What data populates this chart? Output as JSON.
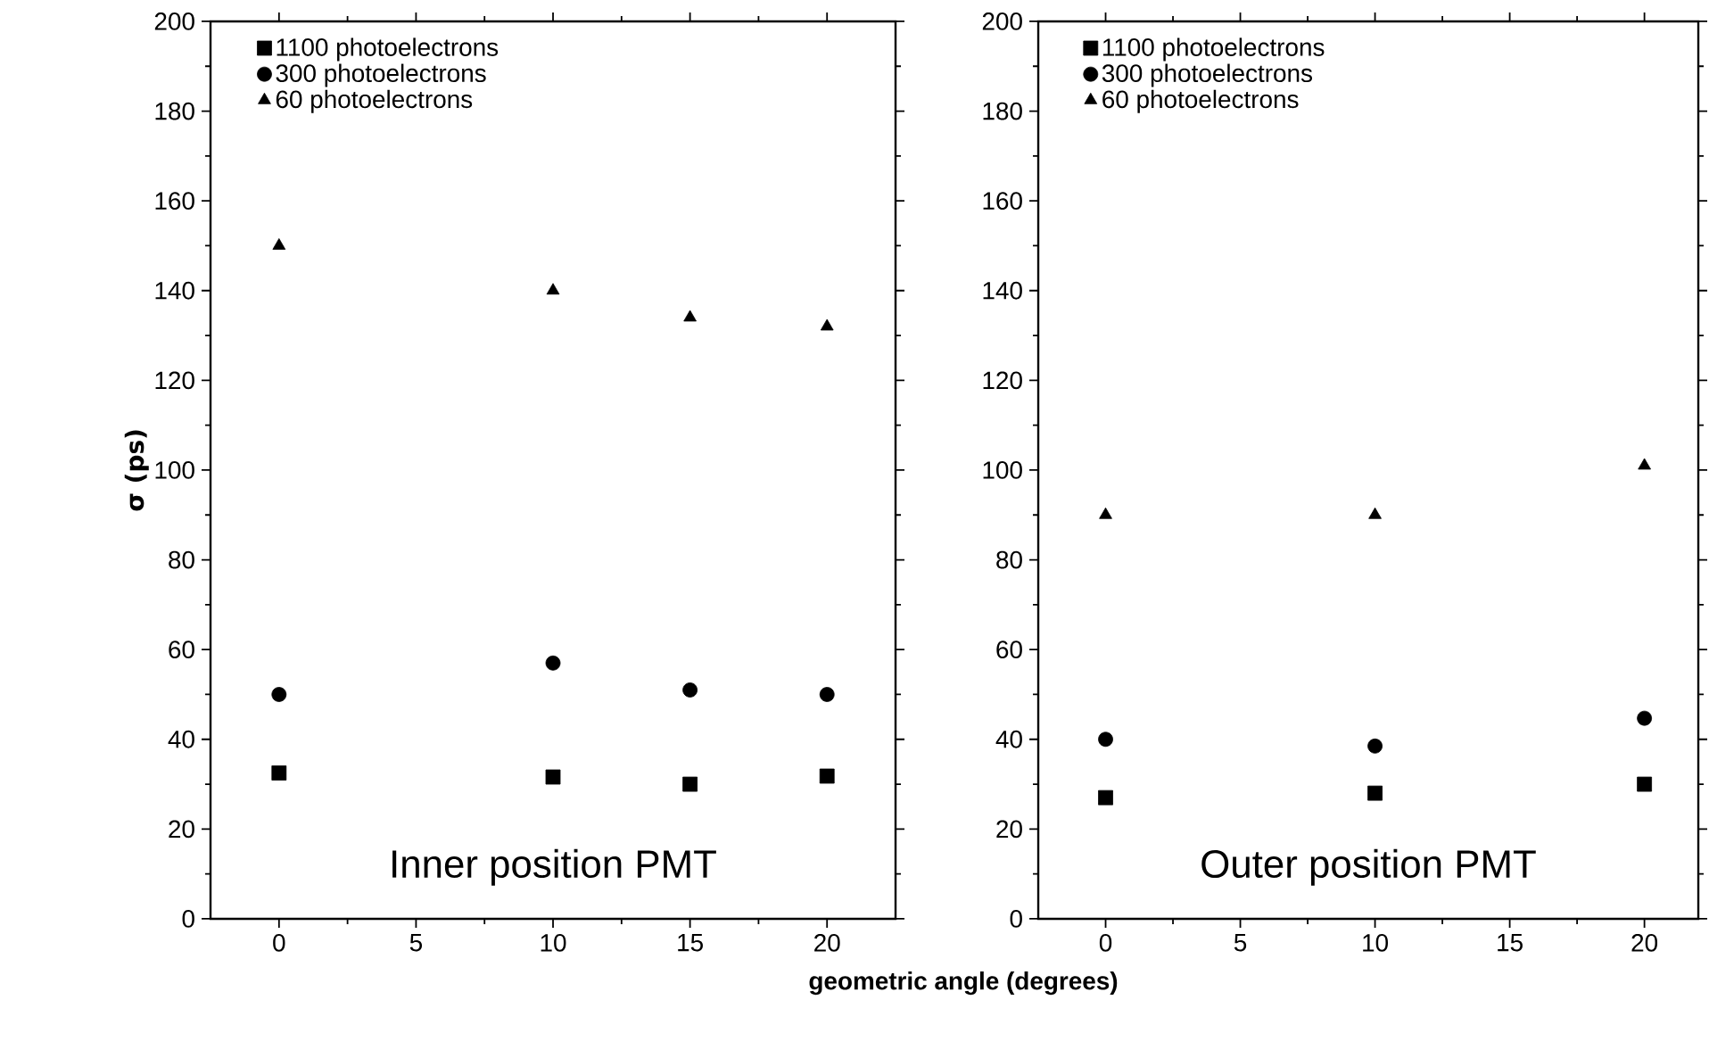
{
  "chart_data": [
    {
      "type": "scatter",
      "ylabel": "σ (ps)",
      "xlabel": "geometric angle (degrees)",
      "annotations": [
        "Inner position PMT"
      ],
      "x": [
        0,
        10,
        15,
        20
      ],
      "xlim": [
        -2.5,
        22.5
      ],
      "xticks": [
        0,
        5,
        10,
        15,
        20
      ],
      "ylim": [
        0,
        200
      ],
      "yticks": [
        0,
        20,
        40,
        60,
        80,
        100,
        120,
        140,
        160,
        180,
        200
      ],
      "legend": "top left",
      "series": [
        {
          "name": "1100 photoelectrons",
          "color": "#000000",
          "marker": "square",
          "values": [
            32.5,
            31.6,
            30,
            31.8
          ]
        },
        {
          "name": "300 photoelectrons",
          "color": "#000000",
          "marker": "circle",
          "values": [
            50,
            57,
            51,
            50
          ]
        },
        {
          "name": "60 photoelectrons",
          "color": "#000000",
          "marker": "triangle",
          "values": [
            150,
            140,
            134,
            132
          ]
        }
      ]
    },
    {
      "type": "scatter",
      "annotations": [
        "Outer position PMT"
      ],
      "x": [
        0,
        10,
        20
      ],
      "xlim": [
        -2.5,
        22
      ],
      "xticks": [
        0,
        5,
        10,
        15,
        20
      ],
      "ylim": [
        0,
        200
      ],
      "yticks": [
        0,
        20,
        40,
        60,
        80,
        100,
        120,
        140,
        160,
        180,
        200
      ],
      "legend": "top left",
      "series": [
        {
          "name": "1100 photoelectrons",
          "color": "#000000",
          "marker": "square",
          "values": [
            27,
            28,
            30
          ]
        },
        {
          "name": "300 photoelectrons",
          "color": "#000000",
          "marker": "circle",
          "values": [
            40,
            38.5,
            44.7
          ]
        },
        {
          "name": "60 photoelectrons",
          "color": "#000000",
          "marker": "triangle",
          "values": [
            90,
            90,
            101
          ]
        }
      ]
    }
  ]
}
